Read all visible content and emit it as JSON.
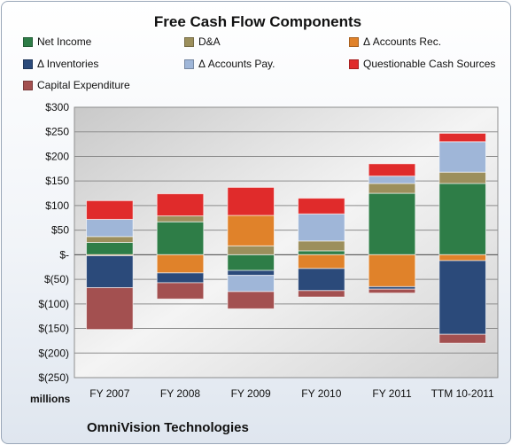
{
  "chart_data": {
    "type": "bar",
    "stacked": true,
    "title": "Free Cash Flow Components",
    "categories": [
      "FY 2007",
      "FY 2008",
      "FY 2009",
      "FY 2010",
      "FY 2011",
      "TTM 10-2011"
    ],
    "series": [
      {
        "name": "Net Income",
        "color": "#2e7d47",
        "values": [
          25,
          67,
          -32,
          8,
          125,
          145
        ]
      },
      {
        "name": "D&A",
        "color": "#9c8f5c",
        "values": [
          12,
          12,
          18,
          20,
          20,
          23
        ]
      },
      {
        "name": "Δ Accounts Rec.",
        "color": "#e0822a",
        "values": [
          -2,
          -37,
          62,
          -28,
          -65,
          -12
        ]
      },
      {
        "name": "Δ Inventories",
        "color": "#2b4a7a",
        "values": [
          -65,
          -20,
          -10,
          -45,
          -5,
          -150
        ]
      },
      {
        "name": "Δ Accounts Pay.",
        "color": "#9fb6d8",
        "values": [
          35,
          0,
          -33,
          55,
          15,
          62
        ]
      },
      {
        "name": "Questionable Cash Sources",
        "color": "#e02b2b",
        "values": [
          38,
          45,
          57,
          32,
          25,
          17
        ]
      },
      {
        "name": "Capital Expenditure",
        "color": "#a35050",
        "values": [
          -85,
          -33,
          -35,
          -13,
          -8,
          -18
        ]
      }
    ],
    "y_ticks": [
      300,
      250,
      200,
      150,
      100,
      50,
      0,
      -50,
      -100,
      -150,
      -200,
      -250
    ],
    "y_tick_labels": [
      "$300",
      "$250",
      "$200",
      "$150",
      "$100",
      "$50",
      "$-",
      "$(50)",
      "$(100)",
      "$(150)",
      "$(200)",
      "$(250)"
    ],
    "ylim": [
      -250,
      300
    ],
    "ylabel": "",
    "xlabel": "",
    "legend_position": "top",
    "grid": true
  },
  "units_label": "millions",
  "company": "OmniVision Technologies"
}
